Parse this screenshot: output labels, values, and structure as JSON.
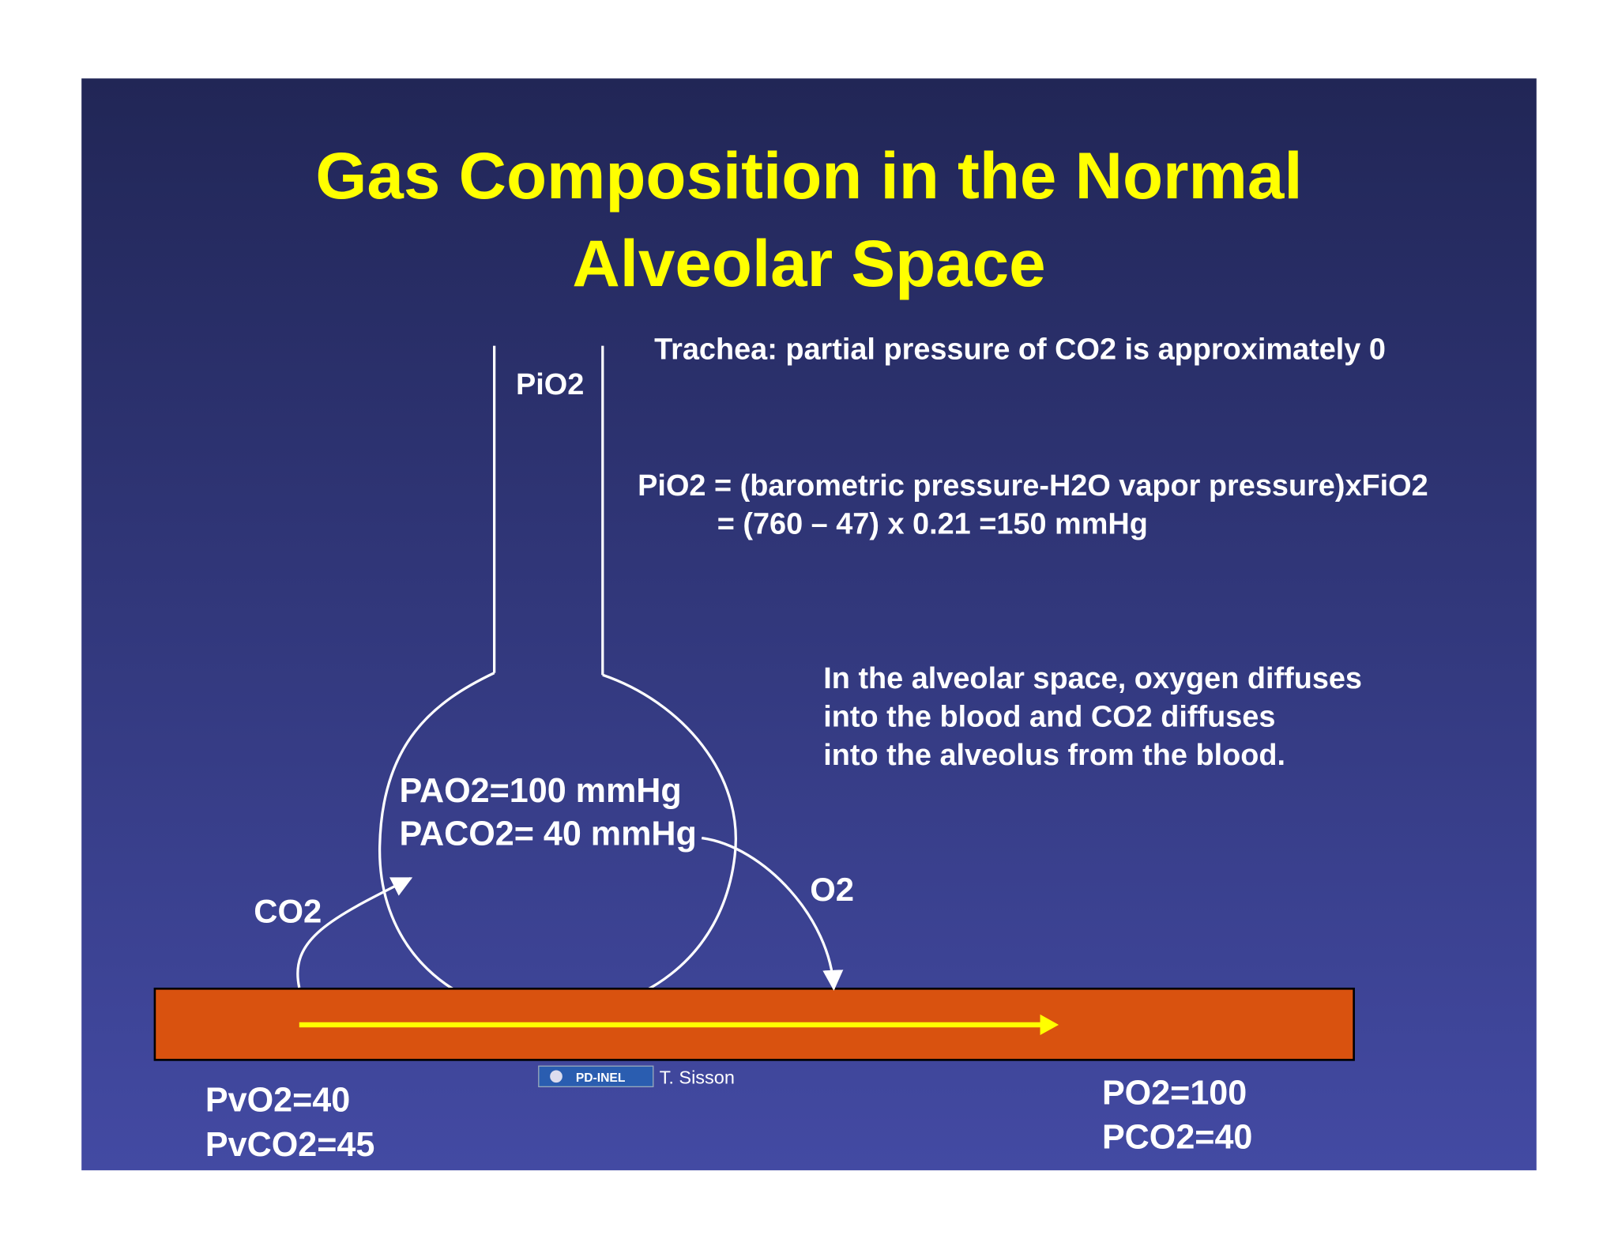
{
  "title": [
    "Gas Composition in the Normal",
    "Alveolar Space"
  ],
  "trachea_label": "PiO2",
  "trachea_note": "Trachea: partial pressure of CO2 is approximately 0",
  "formula": [
    "PiO2 = (barometric pressure-H2O vapor pressure)xFiO2",
    "= (760 – 47) x 0.21 =150 mmHg"
  ],
  "alveolar_note": [
    "In the alveolar space, oxygen diffuses",
    "into the blood and CO2 diffuses",
    "into the alveolus from the blood."
  ],
  "alveolus": [
    "PAO2=100 mmHg",
    "PACO2= 40 mmHg"
  ],
  "arrows": {
    "co2": "CO2",
    "o2": "O2"
  },
  "venous": [
    "PvO2=40",
    "PvCO2=45"
  ],
  "arterial": [
    "PO2=100",
    "PCO2=40"
  ],
  "logo": "PD-INEL",
  "credit": "T. Sisson"
}
